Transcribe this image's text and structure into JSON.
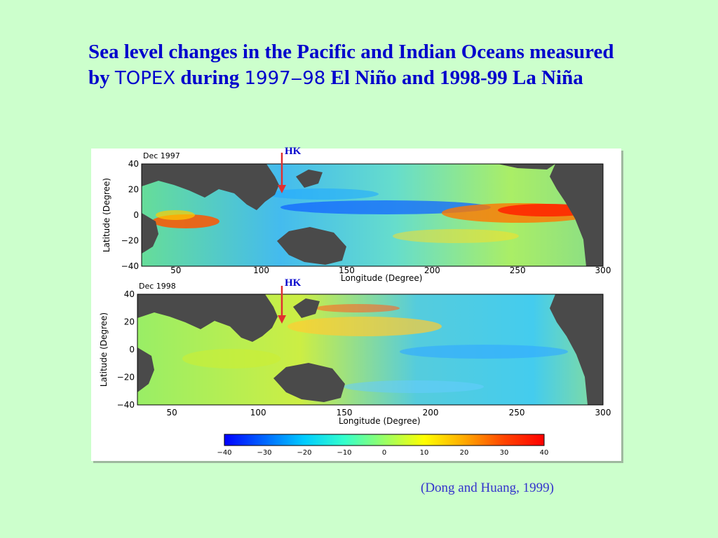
{
  "slide": {
    "title_part1": "Sea level changes in the Pacific and Indian Oceans measured by ",
    "title_topex": "TOPEX",
    "title_part2": " during ",
    "title_years": "1997‒98",
    "title_part3": "  El Niño and 1998-99 La Niña",
    "citation": "(Dong and Huang, 1999)"
  },
  "maps": [
    {
      "date_label": "Dec 1997",
      "marker_label": "HK",
      "ylabel": "Latitude (Degree)",
      "xlabel": "Longitude (Degree)",
      "yticks": [
        "40",
        "20",
        "0",
        "−20",
        "−40"
      ],
      "xticks": [
        "50",
        "100",
        "150",
        "200",
        "250",
        "300"
      ]
    },
    {
      "date_label": "Dec 1998",
      "marker_label": "HK",
      "ylabel": "Latitude (Degree)",
      "xlabel": "Longitude (Degree)",
      "yticks": [
        "40",
        "20",
        "0",
        "−20",
        "−40"
      ],
      "xticks": [
        "50",
        "100",
        "150",
        "200",
        "250",
        "300"
      ]
    }
  ],
  "colorbar": {
    "ticks": [
      "−40",
      "−30",
      "−20",
      "−10",
      "0",
      "10",
      "20",
      "30",
      "40"
    ],
    "colors": [
      "#0000ff",
      "#0066ff",
      "#00ccff",
      "#33ffcc",
      "#99ff66",
      "#ffff00",
      "#ffaa00",
      "#ff4400",
      "#ff0000"
    ]
  },
  "colors": {
    "background": "#ccffcc",
    "title": "#0000cc",
    "land": "#4a4a4a",
    "marker_arrow": "#e03030"
  }
}
